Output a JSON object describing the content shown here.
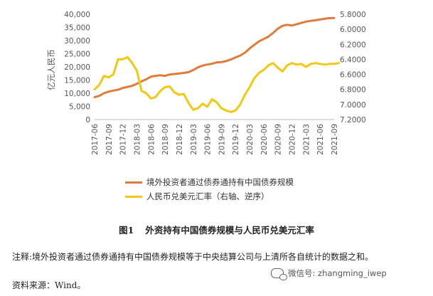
{
  "chart_data": {
    "type": "line",
    "title": "",
    "ylabel": "亿元人民币",
    "y2label": "",
    "ylim": [
      0,
      40000
    ],
    "yticks": [
      "0",
      "5,000",
      "10,000",
      "15,000",
      "20,000",
      "25,000",
      "30,000",
      "35,000",
      "40,000"
    ],
    "y2lim": [
      5.8,
      7.2
    ],
    "y2_inverted": true,
    "y2ticks": [
      "5.8000",
      "6.0000",
      "6.2000",
      "6.4000",
      "6.6000",
      "6.8000",
      "7.0000",
      "7.2000"
    ],
    "xticks": [
      "2017-06",
      "2017-09",
      "2017-12",
      "2018-03",
      "2018-06",
      "2018-09",
      "2018-12",
      "2019-03",
      "2019-06",
      "2019-09",
      "2019-12",
      "2020-03",
      "2020-06",
      "2020-09",
      "2020-12",
      "2021-03",
      "2021-06",
      "2021-09"
    ],
    "grid": false,
    "legend_position": "bottom",
    "series": [
      {
        "name": "境外投资者通过债券通持有中国债券规模",
        "axis": "left",
        "color": "#E07B39",
        "x": [
          0,
          1,
          2,
          3,
          4,
          5,
          6,
          7,
          8,
          9,
          10,
          11,
          12,
          13,
          14,
          15,
          16,
          17,
          18,
          19,
          20,
          21,
          22,
          23,
          24,
          25,
          26,
          27,
          28,
          29,
          30,
          31,
          32,
          33,
          34,
          35,
          36,
          37,
          38,
          39,
          40,
          41,
          42,
          43,
          44,
          45,
          46,
          47,
          48,
          49,
          50,
          51
        ],
        "values": [
          8500,
          9000,
          10000,
          10600,
          11000,
          11300,
          12000,
          12400,
          12800,
          13600,
          14500,
          15300,
          16300,
          16600,
          16800,
          16600,
          17100,
          17300,
          17500,
          17700,
          18000,
          18800,
          19800,
          20500,
          20900,
          21200,
          21700,
          21800,
          22200,
          22800,
          23600,
          24300,
          25400,
          27000,
          28400,
          29700,
          30600,
          31500,
          32900,
          34500,
          35600,
          36000,
          35700,
          36200,
          36700,
          37200,
          37500,
          37700,
          38000,
          38300,
          38500,
          38600
        ]
      },
      {
        "name": "人民币兑美元汇率（右轴、逆序）",
        "axis": "right",
        "color": "#F2C811",
        "x": [
          0,
          1,
          2,
          3,
          4,
          5,
          6,
          7,
          8,
          9,
          10,
          11,
          12,
          13,
          14,
          15,
          16,
          17,
          18,
          19,
          20,
          21,
          22,
          23,
          24,
          25,
          26,
          27,
          28,
          29,
          30,
          31,
          32,
          33,
          34,
          35,
          36,
          37,
          38,
          39,
          40,
          41,
          42,
          43,
          44,
          45,
          46,
          47,
          48,
          49,
          50,
          51,
          52
        ],
        "values": [
          6.8,
          6.74,
          6.62,
          6.64,
          6.6,
          6.4,
          6.4,
          6.37,
          6.45,
          6.55,
          6.82,
          6.85,
          6.92,
          6.9,
          6.82,
          6.77,
          6.76,
          6.84,
          6.87,
          6.86,
          6.98,
          7.07,
          7.05,
          6.99,
          7.03,
          6.93,
          6.97,
          7.05,
          7.08,
          7.1,
          7.08,
          7.0,
          6.87,
          6.77,
          6.65,
          6.58,
          6.54,
          6.48,
          6.45,
          6.51,
          6.56,
          6.48,
          6.45,
          6.47,
          6.46,
          6.5,
          6.46,
          6.45,
          6.46,
          6.47,
          6.46,
          6.46,
          6.45
        ]
      }
    ]
  },
  "caption": {
    "number": "图1",
    "text": "外资持有中国债券规模与人民币兑美元汇率"
  },
  "note": "注释:境外投资者通过债券通持有中国债券规模等于中央结算公司与上清所各自统计的数据之和。",
  "source": "资料来源：Wind。",
  "watermark": {
    "icon": "wechat-icon",
    "text": "微信号: zhangming_iwep"
  }
}
